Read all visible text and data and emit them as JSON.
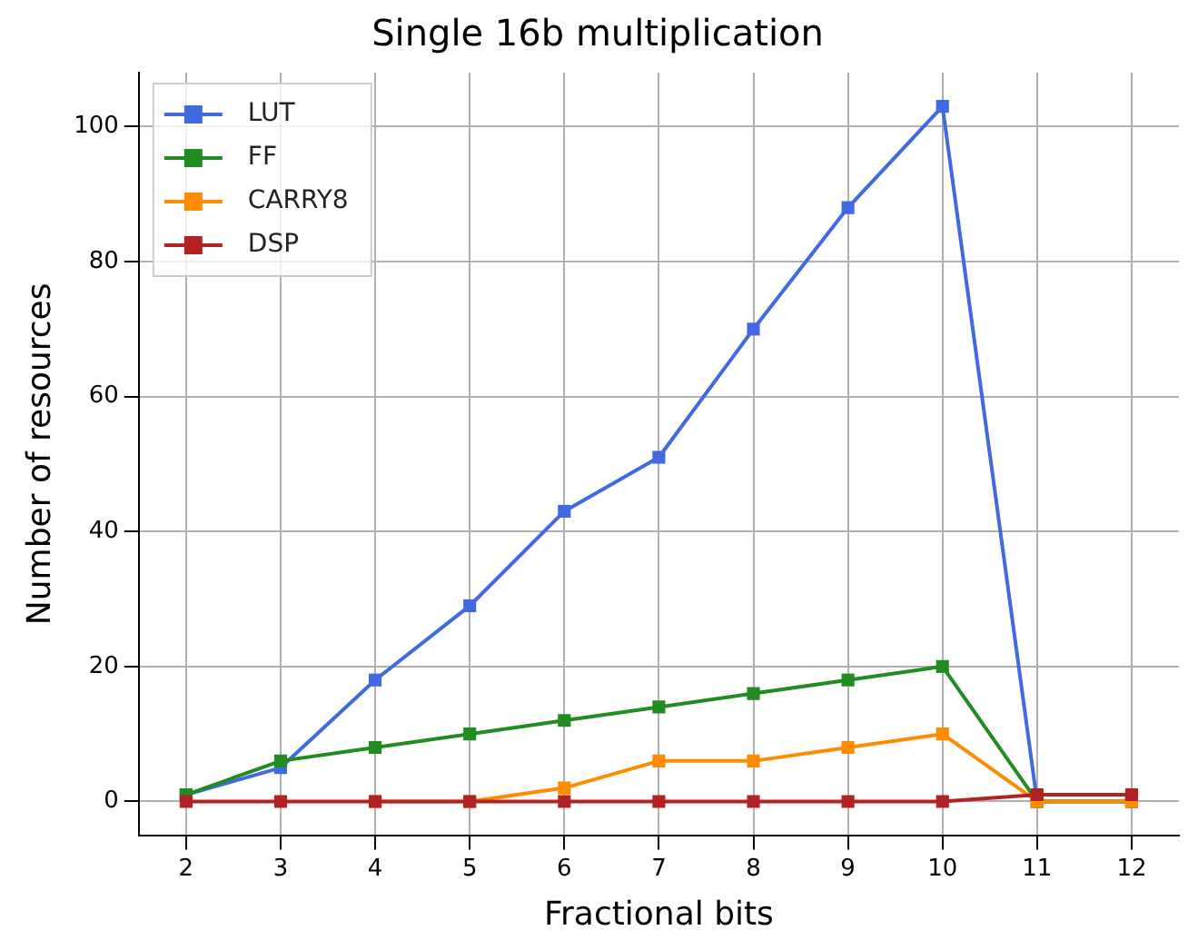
{
  "chart_data": {
    "type": "line",
    "title": "Single 16b multiplication",
    "xlabel": "Fractional bits",
    "ylabel": "Number of resources",
    "x": [
      2,
      3,
      4,
      5,
      6,
      7,
      8,
      9,
      10,
      11,
      12
    ],
    "series": [
      {
        "name": "LUT",
        "color": "#4169e1",
        "values": [
          1,
          5,
          18,
          29,
          43,
          51,
          70,
          88,
          103,
          0,
          0
        ]
      },
      {
        "name": "FF",
        "color": "#228b22",
        "values": [
          1,
          6,
          8,
          10,
          12,
          14,
          16,
          18,
          20,
          0,
          0
        ]
      },
      {
        "name": "CARRY8",
        "color": "#ff8c00",
        "values": [
          null,
          null,
          0,
          0,
          2,
          6,
          6,
          8,
          10,
          0,
          0
        ]
      },
      {
        "name": "DSP",
        "color": "#b22222",
        "values": [
          0,
          0,
          0,
          0,
          0,
          0,
          0,
          0,
          0,
          1,
          1
        ]
      }
    ],
    "xlim": [
      1.5,
      12.5
    ],
    "xticks": [
      2,
      3,
      4,
      5,
      6,
      7,
      8,
      9,
      10,
      11,
      12
    ],
    "ylim": [
      -5,
      108
    ],
    "yticks": [
      0,
      20,
      40,
      60,
      80,
      100
    ],
    "grid": true,
    "legend": "top left",
    "marker": "square",
    "line_style": "solid"
  }
}
